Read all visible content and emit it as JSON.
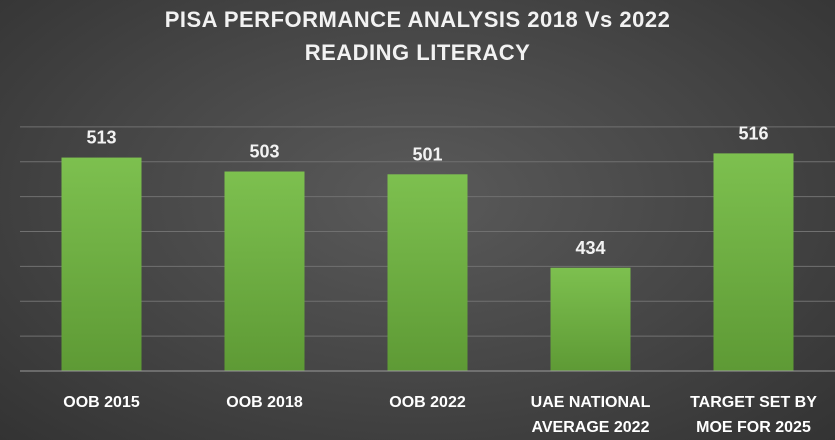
{
  "chart_data": {
    "type": "bar",
    "title": "PISA PERFORMANCE ANALYSIS 2018 Vs 2022",
    "subtitle": "READING LITERACY",
    "categories": [
      [
        "OOB 2015"
      ],
      [
        "OOB 2018"
      ],
      [
        "OOB 2022"
      ],
      [
        "UAE NATIONAL",
        "AVERAGE 2022"
      ],
      [
        "TARGET SET BY",
        "MOE FOR 2025"
      ]
    ],
    "values": [
      513,
      503,
      501,
      434,
      516
    ],
    "data_labels": [
      "513",
      "503",
      "501",
      "434",
      "516"
    ],
    "ylim": [
      360,
      560
    ],
    "grid": true,
    "bar_color": "#7dc04f",
    "bar_color_dark": "#5e9a35",
    "xlabel": "",
    "ylabel": ""
  }
}
